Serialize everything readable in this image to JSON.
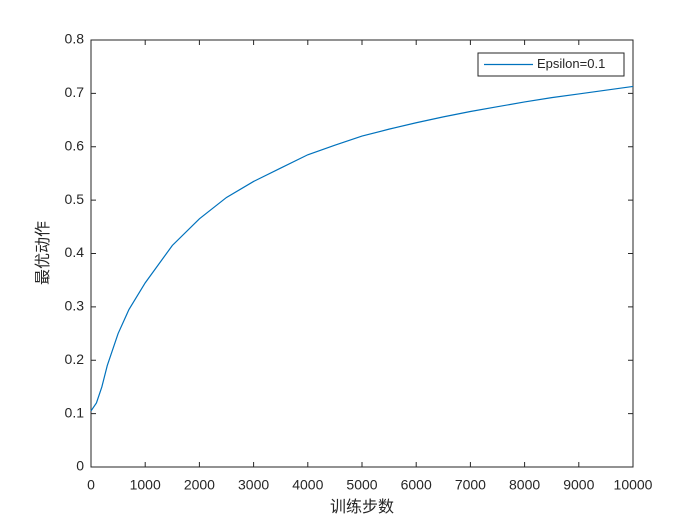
{
  "chart_data": {
    "type": "line",
    "x_label": "训练步数",
    "y_label": "最优动作",
    "x": [
      0,
      100,
      200,
      300,
      400,
      500,
      700,
      1000,
      1500,
      2000,
      2500,
      3000,
      3500,
      4000,
      4500,
      5000,
      5500,
      6000,
      6500,
      7000,
      7500,
      8000,
      8500,
      9000,
      9500,
      10000
    ],
    "series": [
      {
        "name": "Epsilon=0.1",
        "color": "#0072bd",
        "values": [
          0.105,
          0.12,
          0.15,
          0.19,
          0.22,
          0.25,
          0.295,
          0.345,
          0.415,
          0.465,
          0.505,
          0.535,
          0.56,
          0.585,
          0.603,
          0.62,
          0.633,
          0.645,
          0.656,
          0.666,
          0.675,
          0.684,
          0.692,
          0.699,
          0.706,
          0.713
        ]
      }
    ],
    "xlim": [
      0,
      10000
    ],
    "xticks": [
      0,
      1000,
      2000,
      3000,
      4000,
      5000,
      6000,
      7000,
      8000,
      9000,
      10000
    ],
    "ylim": [
      0,
      0.8
    ],
    "yticks": [
      0,
      0.1,
      0.2,
      0.3,
      0.4,
      0.5,
      0.6,
      0.7,
      0.8
    ],
    "grid": false,
    "legend": "northeast"
  }
}
